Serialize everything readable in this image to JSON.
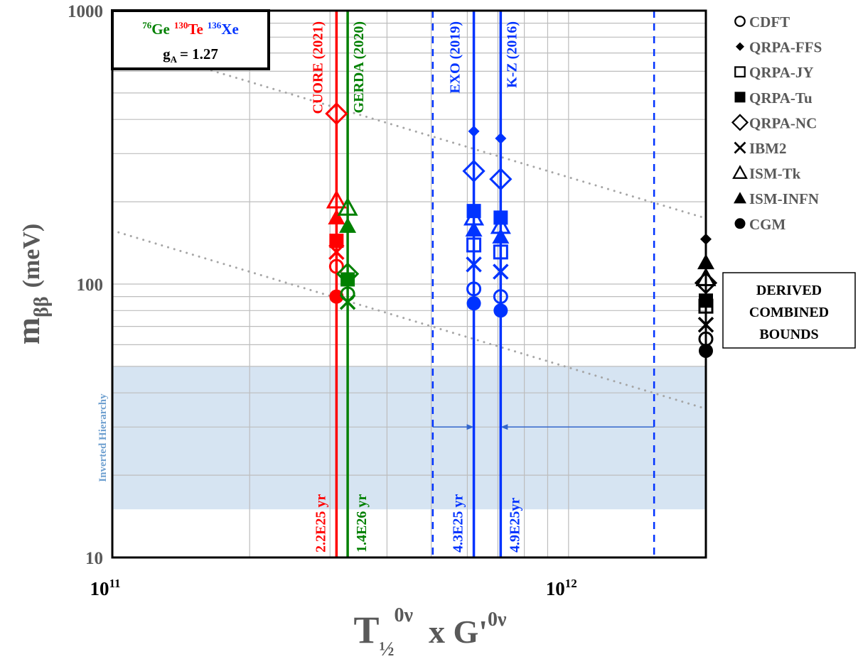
{
  "chart_data": {
    "type": "scatter",
    "x_scale": "log",
    "y_scale": "log",
    "xlim": [
      100000000000.0,
      2000000000000.0
    ],
    "ylim": [
      10,
      1000
    ],
    "grid": true,
    "legend_placement": "right",
    "xlabel": {
      "base": "T",
      "sub": "½",
      "sup": "0ν",
      "mid": "x G'",
      "sup2": "0ν"
    },
    "ylabel": {
      "base": "m",
      "sub": "ββ",
      "unit": "(meV)"
    },
    "x_ticks": [
      {
        "value": 100000000000.0,
        "base": "10",
        "exp": "11"
      },
      {
        "value": 1000000000000.0,
        "base": "10",
        "exp": "12"
      }
    ],
    "y_ticks": [
      {
        "value": 10,
        "label": "10"
      },
      {
        "value": 100,
        "label": "100"
      },
      {
        "value": 1000,
        "label": "1000"
      }
    ],
    "info_box": {
      "isotopes": [
        {
          "mass": "76",
          "symbol": "Ge",
          "color": "#008000"
        },
        {
          "mass": "130",
          "symbol": "Te",
          "color": "#ff0000"
        },
        {
          "mass": "136",
          "symbol": "Xe",
          "color": "#0033ff"
        }
      ],
      "ga_base": "g",
      "ga_sub": "A",
      "ga_value": "= 1.27"
    },
    "band": {
      "label": "Inverted Hierarchy",
      "ymin": 15,
      "ymax": 50,
      "color": "#d6e4f2",
      "label_color": "#6fa0d0"
    },
    "trend_lines": [
      {
        "x": [
          100000000000.0,
          2000000000000.0
        ],
        "y": [
          776,
          174
        ]
      },
      {
        "x": [
          100000000000.0,
          2000000000000.0
        ],
        "y": [
          157,
          35
        ]
      }
    ],
    "dashed_lines": [
      {
        "x": 504000000000.0,
        "color": "#0033ff"
      },
      {
        "x": 1540000000000.0,
        "color": "#0033ff"
      }
    ],
    "arrows": [
      {
        "from": 504000000000.0,
        "to": 620000000000.0,
        "y": 30,
        "color": "#3366cc"
      },
      {
        "from": 1540000000000.0,
        "to": 710000000000.0,
        "y": 30,
        "color": "#3366cc"
      }
    ],
    "models": [
      {
        "name": "CDFT",
        "marker": "circle-open"
      },
      {
        "name": "QRPA-FFS",
        "marker": "diamond-filled"
      },
      {
        "name": "QRPA-JY",
        "marker": "square-open"
      },
      {
        "name": "QRPA-Tu",
        "marker": "square-filled"
      },
      {
        "name": "QRPA-NC",
        "marker": "diamond-open"
      },
      {
        "name": "IBM2",
        "marker": "x"
      },
      {
        "name": "ISM-Tk",
        "marker": "triangle-open"
      },
      {
        "name": "ISM-INFN",
        "marker": "triangle-filled"
      },
      {
        "name": "CGM",
        "marker": "circle-filled"
      }
    ],
    "legend_color": "#595959",
    "groups": [
      {
        "name": "CUORE (2021)",
        "halflife": "2.2E25 yr",
        "x": 310000000000.0,
        "color": "#ff0000",
        "label_side": "left",
        "values": {
          "QRPA-NC": 420,
          "ISM-Tk": 202,
          "ISM-INFN": 175,
          "QRPA-Tu": 144,
          "IBM2": 131,
          "CDFT": 116,
          "CGM": 90
        }
      },
      {
        "name": "GERDA (2020)",
        "halflife": "1.4E26 yr",
        "x": 328000000000.0,
        "color": "#008000",
        "label_side": "right",
        "values": {
          "ISM-Tk": 190,
          "ISM-INFN": 163,
          "QRPA-NC": 109,
          "QRPA-Tu": 104,
          "CDFT": 92,
          "IBM2": 86
        }
      },
      {
        "name": "EXO (2019)",
        "halflife": "4.3E25 yr",
        "x": 620000000000.0,
        "color": "#0033ff",
        "label_side": "left",
        "values": {
          "QRPA-FFS": 362,
          "QRPA-NC": 259,
          "QRPA-Tu": 185,
          "ISM-Tk": 175,
          "ISM-INFN": 158,
          "QRPA-JY": 139,
          "IBM2": 118,
          "CDFT": 96,
          "CGM": 85
        }
      },
      {
        "name": "K-Z (2016)",
        "halflife": "4.9E25yr",
        "x": 710000000000.0,
        "color": "#0033ff",
        "label_side": "right",
        "values": {
          "QRPA-FFS": 341,
          "QRPA-NC": 242,
          "QRPA-Tu": 175,
          "ISM-Tk": 163,
          "ISM-INFN": 149,
          "QRPA-JY": 131,
          "IBM2": 111,
          "CDFT": 90,
          "CGM": 80
        }
      },
      {
        "name": "DERIVED COMBINED BOUNDS",
        "label_lines": [
          "DERIVED",
          "COMBINED",
          "BOUNDS"
        ],
        "x": 2000000000000.0,
        "color": "#000000",
        "label_side": "box",
        "values": {
          "QRPA-FFS": 146,
          "ISM-INFN": 120,
          "ISM-Tk": 105,
          "QRPA-NC": 101,
          "QRPA-Tu": 87,
          "QRPA-JY": 83,
          "IBM2": 71,
          "CDFT": 63,
          "CGM": 57
        }
      }
    ]
  }
}
